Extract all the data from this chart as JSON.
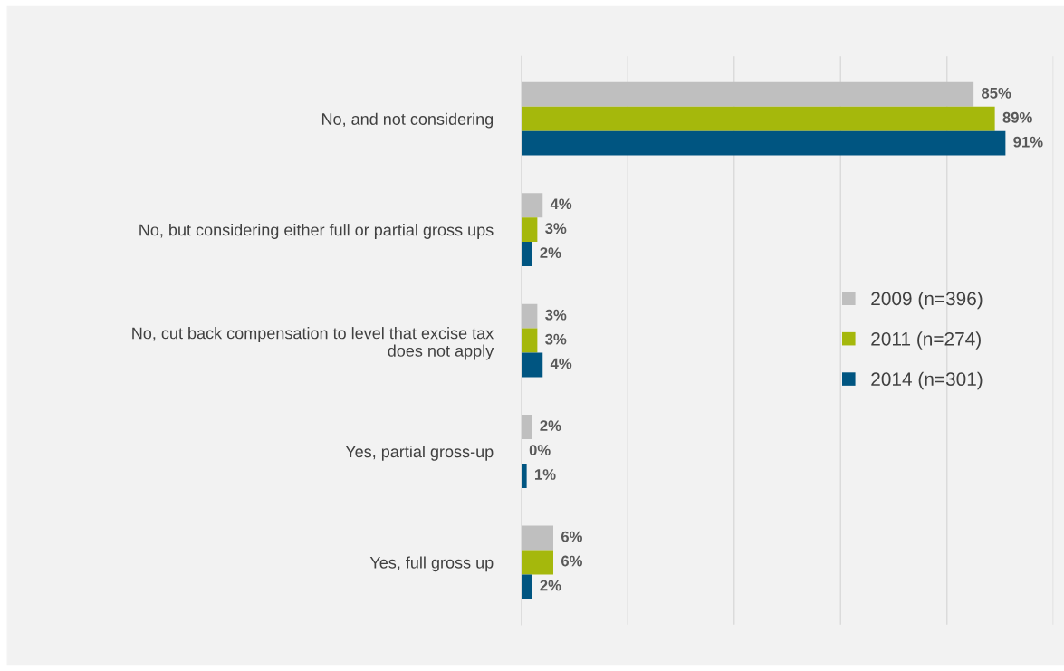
{
  "chart_data": {
    "type": "bar",
    "orientation": "horizontal",
    "categories": [
      "No, and not considering",
      "No, but considering either full or partial gross ups",
      "No, cut back compensation to level that excise tax\ndoes not apply",
      "Yes, partial gross-up",
      "Yes, full gross up"
    ],
    "series": [
      {
        "name": "2009 (n=396)",
        "color": "#bfbfbf",
        "values": [
          85,
          4,
          3,
          2,
          6
        ],
        "value_labels": [
          "85%",
          "4%",
          "3%",
          "2%",
          "6%"
        ]
      },
      {
        "name": "2011 (n=274)",
        "color": "#a5b80c",
        "values": [
          89,
          3,
          3,
          0,
          6
        ],
        "value_labels": [
          "89%",
          "3%",
          "3%",
          "0%",
          "6%"
        ]
      },
      {
        "name": "2014 (n=301)",
        "color": "#005581",
        "values": [
          91,
          2,
          4,
          1,
          2
        ],
        "value_labels": [
          "91%",
          "2%",
          "4%",
          "1%",
          "2%"
        ]
      }
    ],
    "xlim": [
      0,
      100
    ],
    "xticks": [
      {
        "value": 0,
        "label": null
      },
      {
        "value": 20,
        "label": null
      },
      {
        "value": 40,
        "label": null
      },
      {
        "value": 60,
        "label": null
      },
      {
        "value": 80,
        "label": null
      },
      {
        "value": 100,
        "label": null
      }
    ],
    "grid": "x",
    "legend": "right",
    "tick_labels": "y"
  }
}
